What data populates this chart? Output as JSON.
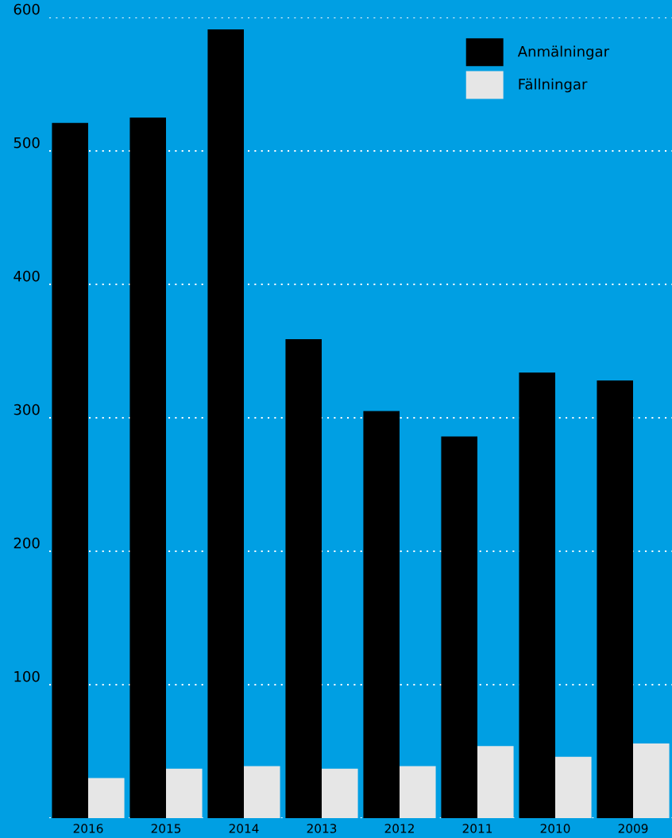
{
  "chart_data": {
    "type": "bar",
    "categories": [
      "2016",
      "2015",
      "2014",
      "2013",
      "2012",
      "2011",
      "2010",
      "2009"
    ],
    "series": [
      {
        "name": "Anmälningar",
        "color": "#000000",
        "values": [
          521,
          525,
          591,
          359,
          305,
          286,
          334,
          328
        ]
      },
      {
        "name": "Fällningar",
        "color": "#e6e6e6",
        "values": [
          30,
          37,
          39,
          37,
          39,
          54,
          46,
          56
        ]
      }
    ],
    "ylim": [
      0,
      600
    ],
    "yticks": [
      {
        "value": 0,
        "label": null
      },
      100,
      200,
      300,
      400,
      500,
      600
    ],
    "grid": "y",
    "legend": "top right"
  }
}
